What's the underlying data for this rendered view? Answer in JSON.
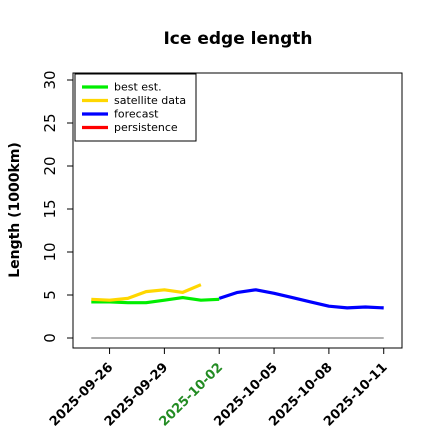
{
  "chart_data": {
    "type": "line",
    "title": "Ice edge length",
    "xlabel": "",
    "ylabel": "Length (1000km)",
    "ylim": [
      0,
      30
    ],
    "yticks": [
      0,
      5,
      10,
      15,
      20,
      25,
      30
    ],
    "xlim": [
      "2025-09-24",
      "2025-10-12"
    ],
    "xticks": [
      {
        "date": "2025-09-26",
        "label": "2025-09-26",
        "color": "#000000"
      },
      {
        "date": "2025-09-29",
        "label": "2025-09-29",
        "color": "#000000"
      },
      {
        "date": "2025-10-02",
        "label": "2025-10-02",
        "color": "#228B22"
      },
      {
        "date": "2025-10-05",
        "label": "2025-10-05",
        "color": "#000000"
      },
      {
        "date": "2025-10-08",
        "label": "2025-10-08",
        "color": "#000000"
      },
      {
        "date": "2025-10-11",
        "label": "2025-10-11",
        "color": "#000000"
      }
    ],
    "legend": {
      "placement": "top-left"
    },
    "grid": false,
    "series": [
      {
        "name": "best est.",
        "color": "#00EE00",
        "points": [
          {
            "x": "2025-09-25",
            "y": 4.2
          },
          {
            "x": "2025-09-26",
            "y": 4.2
          },
          {
            "x": "2025-09-27",
            "y": 4.1
          },
          {
            "x": "2025-09-28",
            "y": 4.1
          },
          {
            "x": "2025-09-29",
            "y": 4.4
          },
          {
            "x": "2025-09-30",
            "y": 4.7
          },
          {
            "x": "2025-10-01",
            "y": 4.4
          },
          {
            "x": "2025-10-02",
            "y": 4.5
          }
        ]
      },
      {
        "name": "satellite data",
        "color": "#FFD700",
        "points": [
          {
            "x": "2025-09-25",
            "y": 4.5
          },
          {
            "x": "2025-09-26",
            "y": 4.4
          },
          {
            "x": "2025-09-27",
            "y": 4.6
          },
          {
            "x": "2025-09-28",
            "y": 5.4
          },
          {
            "x": "2025-09-29",
            "y": 5.6
          },
          {
            "x": "2025-09-30",
            "y": 5.3
          },
          {
            "x": "2025-10-01",
            "y": 6.2
          }
        ]
      },
      {
        "name": "forecast",
        "color": "#0000FF",
        "points": [
          {
            "x": "2025-10-02",
            "y": 4.6
          },
          {
            "x": "2025-10-03",
            "y": 5.3
          },
          {
            "x": "2025-10-04",
            "y": 5.6
          },
          {
            "x": "2025-10-05",
            "y": 5.2
          },
          {
            "x": "2025-10-06",
            "y": 4.7
          },
          {
            "x": "2025-10-07",
            "y": 4.2
          },
          {
            "x": "2025-10-08",
            "y": 3.7
          },
          {
            "x": "2025-10-09",
            "y": 3.5
          },
          {
            "x": "2025-10-10",
            "y": 3.6
          },
          {
            "x": "2025-10-11",
            "y": 3.5
          }
        ]
      },
      {
        "name": "persistence",
        "color": "#FF0000",
        "points": []
      }
    ],
    "reference_line": {
      "y": 0,
      "from": "2025-09-25",
      "to": "2025-10-11",
      "color": "#808080"
    }
  }
}
